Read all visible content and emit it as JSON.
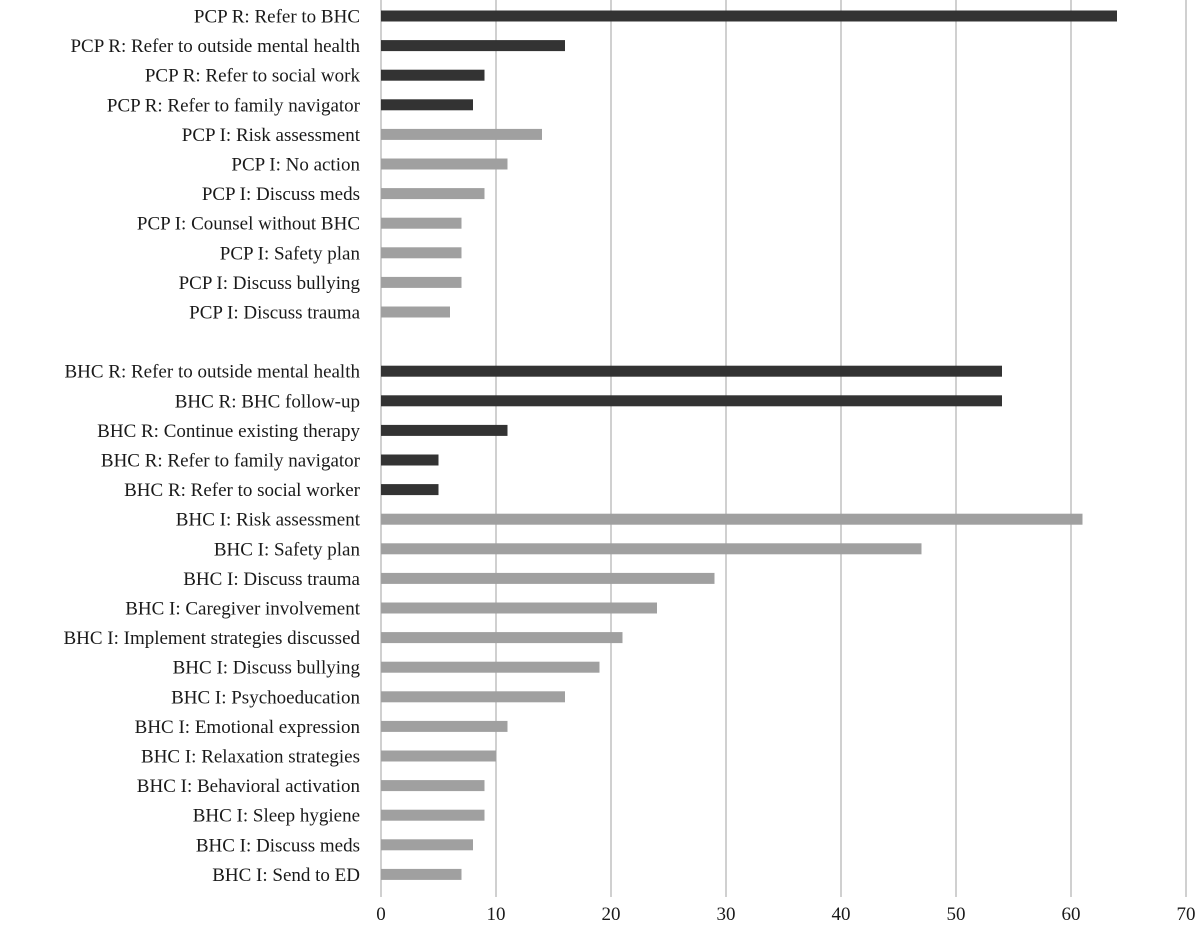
{
  "chart_data": {
    "type": "bar",
    "orientation": "horizontal",
    "title": "",
    "xlabel": "",
    "ylabel": "",
    "xlim": [
      0,
      70
    ],
    "xticks": [
      0,
      10,
      20,
      30,
      40,
      50,
      60,
      70
    ],
    "grid": "vertical",
    "colors": {
      "R": "#333333",
      "I": "#a0a0a0"
    },
    "groups": [
      {
        "bars": [
          {
            "label": "PCP R: Refer to BHC",
            "value": 64,
            "kind": "R"
          },
          {
            "label": "PCP R: Refer to outside mental health",
            "value": 16,
            "kind": "R"
          },
          {
            "label": "PCP R: Refer to social work",
            "value": 9,
            "kind": "R"
          },
          {
            "label": "PCP R: Refer to family navigator",
            "value": 8,
            "kind": "R"
          },
          {
            "label": "PCP I: Risk assessment",
            "value": 14,
            "kind": "I"
          },
          {
            "label": "PCP I: No action",
            "value": 11,
            "kind": "I"
          },
          {
            "label": "PCP I: Discuss meds",
            "value": 9,
            "kind": "I"
          },
          {
            "label": "PCP I: Counsel without BHC",
            "value": 7,
            "kind": "I"
          },
          {
            "label": "PCP I: Safety plan",
            "value": 7,
            "kind": "I"
          },
          {
            "label": "PCP I: Discuss bullying",
            "value": 7,
            "kind": "I"
          },
          {
            "label": "PCP I: Discuss trauma",
            "value": 6,
            "kind": "I"
          }
        ]
      },
      {
        "bars": [
          {
            "label": "BHC R: Refer to outside mental health",
            "value": 54,
            "kind": "R"
          },
          {
            "label": "BHC R: BHC follow-up",
            "value": 54,
            "kind": "R"
          },
          {
            "label": "BHC R: Continue existing therapy",
            "value": 11,
            "kind": "R"
          },
          {
            "label": "BHC R: Refer to family navigator",
            "value": 5,
            "kind": "R"
          },
          {
            "label": "BHC R: Refer to social worker",
            "value": 5,
            "kind": "R"
          },
          {
            "label": "BHC I: Risk assessment",
            "value": 61,
            "kind": "I"
          },
          {
            "label": "BHC I: Safety plan",
            "value": 47,
            "kind": "I"
          },
          {
            "label": "BHC I: Discuss trauma",
            "value": 29,
            "kind": "I"
          },
          {
            "label": "BHC I: Caregiver involvement",
            "value": 24,
            "kind": "I"
          },
          {
            "label": "BHC I: Implement strategies discussed",
            "value": 21,
            "kind": "I"
          },
          {
            "label": "BHC I: Discuss bullying",
            "value": 19,
            "kind": "I"
          },
          {
            "label": "BHC I: Psychoeducation",
            "value": 16,
            "kind": "I"
          },
          {
            "label": "BHC I: Emotional expression",
            "value": 11,
            "kind": "I"
          },
          {
            "label": "BHC I: Relaxation strategies",
            "value": 10,
            "kind": "I"
          },
          {
            "label": "BHC I: Behavioral activation",
            "value": 9,
            "kind": "I"
          },
          {
            "label": "BHC I: Sleep hygiene",
            "value": 9,
            "kind": "I"
          },
          {
            "label": "BHC I: Discuss meds",
            "value": 8,
            "kind": "I"
          },
          {
            "label": "BHC I: Send to ED",
            "value": 7,
            "kind": "I"
          }
        ]
      }
    ]
  }
}
